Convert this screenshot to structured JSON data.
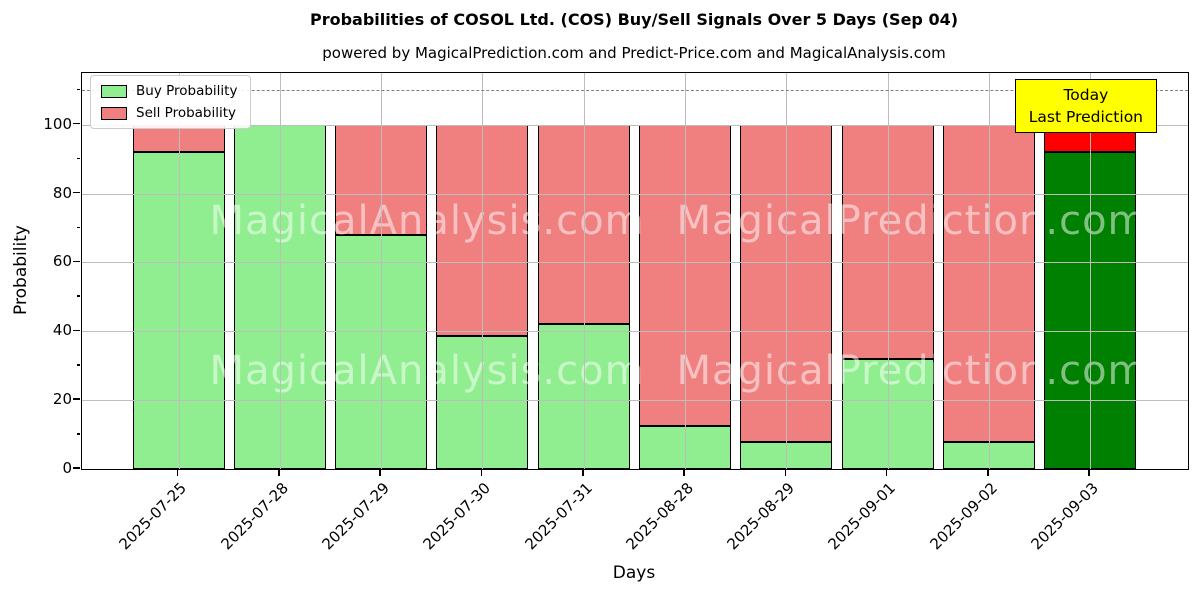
{
  "header": {
    "title": "Probabilities of COSOL Ltd. (COS) Buy/Sell Signals Over 5 Days (Sep 04)",
    "subtitle": "powered by MagicalPrediction.com and Predict-Price.com and MagicalAnalysis.com"
  },
  "legend": {
    "items": [
      {
        "label": "Buy Probability",
        "color": "#90ee90"
      },
      {
        "label": "Sell Probability",
        "color": "#f08080"
      }
    ]
  },
  "annotation": {
    "line1": "Today",
    "line2": "Last Prediction",
    "bg_color": "#ffff00",
    "border_color": "#000000"
  },
  "watermarks": {
    "left_text": "MagicalAnalysis.com",
    "right_text": "MagicalPrediction.com",
    "color": "rgba(255,255,255,0.5)"
  },
  "chart_data": {
    "type": "bar",
    "stacked": true,
    "title": "Probabilities of COSOL Ltd. (COS) Buy/Sell Signals Over 5 Days (Sep 04)",
    "xlabel": "Days",
    "ylabel": "Probability",
    "ylim": [
      0,
      115
    ],
    "yticks": [
      0,
      20,
      40,
      60,
      80,
      100
    ],
    "grid": true,
    "legend_position": "upper left",
    "reference_line_y": 110,
    "categories": [
      "2025-07-25",
      "2025-07-28",
      "2025-07-29",
      "2025-07-30",
      "2025-07-31",
      "2025-08-28",
      "2025-08-29",
      "2025-09-01",
      "2025-09-02",
      "2025-09-03"
    ],
    "series": [
      {
        "name": "Buy Probability",
        "color": "#90ee90",
        "values": [
          92,
          100,
          68,
          38.5,
          42,
          12.5,
          8,
          32,
          8,
          92
        ]
      },
      {
        "name": "Sell Probability",
        "color": "#f08080",
        "values": [
          8,
          0,
          32,
          61.5,
          58,
          87.5,
          92,
          68,
          92,
          8
        ]
      }
    ],
    "highlight": {
      "index": 9,
      "buy_color": "#008000",
      "sell_color": "#ff0000",
      "note": "Today / Last Prediction bar"
    },
    "colors": {
      "grid": "#bdbdbd",
      "dashed_line": "#808080",
      "edge": "#000000",
      "background": "#ffffff"
    }
  }
}
